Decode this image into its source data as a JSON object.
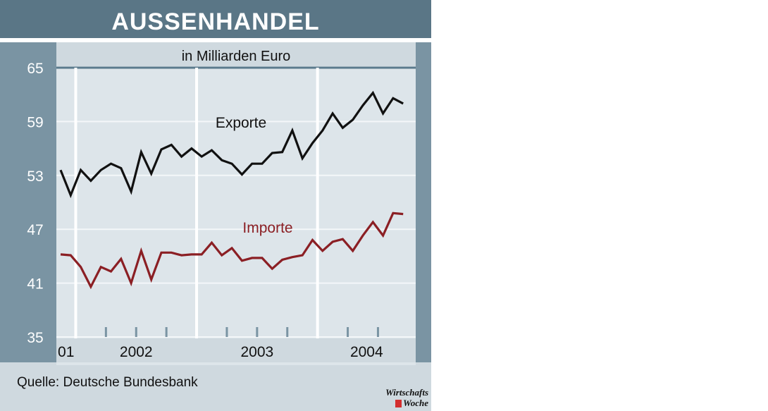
{
  "title": "AUSSENHANDEL",
  "source": "Quelle: Deutsche Bundesbank",
  "logo": {
    "line1": "Wirtschafts",
    "line2": "Woche"
  },
  "chart_data": {
    "type": "line",
    "title": "AUSSENHANDEL",
    "subtitle": "in Milliarden Euro",
    "ylim": [
      35,
      65
    ],
    "yticks": [
      65,
      59,
      53,
      47,
      41,
      35
    ],
    "grid": true,
    "x_groups": [
      "01",
      "2002",
      "2003",
      "2004"
    ],
    "x": [
      "2001-11",
      "2001-12",
      "2002-01",
      "2002-02",
      "2002-03",
      "2002-04",
      "2002-05",
      "2002-06",
      "2002-07",
      "2002-08",
      "2002-09",
      "2002-10",
      "2002-11",
      "2002-12",
      "2003-01",
      "2003-02",
      "2003-03",
      "2003-04",
      "2003-05",
      "2003-06",
      "2003-07",
      "2003-08",
      "2003-09",
      "2003-10",
      "2003-11",
      "2003-12",
      "2004-01",
      "2004-02",
      "2004-03",
      "2004-04",
      "2004-05",
      "2004-06",
      "2004-07",
      "2004-08",
      "2004-09"
    ],
    "series": [
      {
        "name": "Exporte",
        "color": "#111111",
        "values": [
          53.6,
          50.8,
          53.6,
          52.4,
          53.6,
          54.3,
          53.8,
          51.2,
          55.6,
          53.2,
          55.9,
          56.4,
          55.1,
          56.0,
          55.1,
          55.8,
          54.7,
          54.3,
          53.1,
          54.3,
          54.3,
          55.5,
          55.6,
          58.0,
          54.9,
          56.6,
          58.0,
          59.9,
          58.3,
          59.2,
          60.8,
          62.2,
          59.9,
          61.6,
          61.0
        ],
        "label": "Exporte"
      },
      {
        "name": "Importe",
        "color": "#8b1f24",
        "values": [
          44.2,
          44.1,
          42.8,
          40.6,
          42.8,
          42.3,
          43.7,
          41.0,
          44.6,
          41.4,
          44.4,
          44.4,
          44.1,
          44.2,
          44.2,
          45.5,
          44.1,
          44.9,
          43.5,
          43.8,
          43.8,
          42.6,
          43.6,
          43.9,
          44.1,
          45.8,
          44.6,
          45.6,
          45.9,
          44.6,
          46.3,
          47.8,
          46.3,
          48.8,
          48.7
        ],
        "label": "Importe"
      }
    ]
  }
}
